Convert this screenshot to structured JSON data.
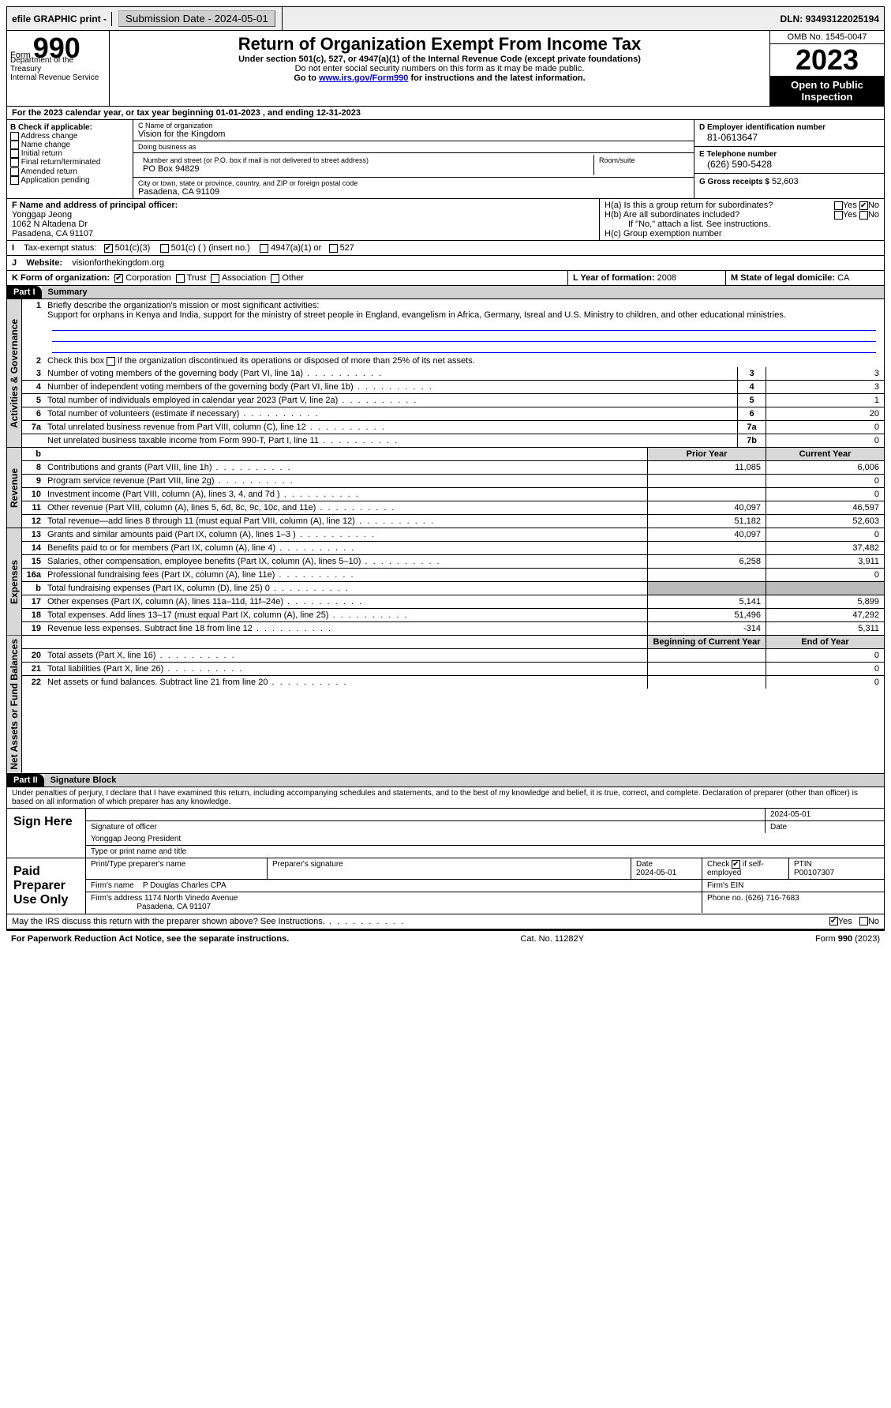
{
  "topbar": {
    "efile": "efile GRAPHIC print -",
    "submission_label": "Submission Date - 2024-05-01",
    "dln_label": "DLN:",
    "dln_value": "93493122025194"
  },
  "header": {
    "form_word": "Form",
    "form_no": "990",
    "dept": "Department of the Treasury\nInternal Revenue Service",
    "title": "Return of Organization Exempt From Income Tax",
    "subtitle": "Under section 501(c), 527, or 4947(a)(1) of the Internal Revenue Code (except private foundations)",
    "note": "Do not enter social security numbers on this form as it may be made public.",
    "goto_pre": "Go to ",
    "goto_link": "www.irs.gov/Form990",
    "goto_post": " for instructions and the latest information.",
    "omb": "OMB No. 1545-0047",
    "year": "2023",
    "open_pub": "Open to Public Inspection"
  },
  "line_a": {
    "text": "For the 2023 calendar year, or tax year beginning 01-01-2023   , and ending 12-31-2023"
  },
  "section_b": {
    "header": "B Check if applicable:",
    "items": [
      "Address change",
      "Name change",
      "Initial return",
      "Final return/terminated",
      "Amended return",
      "Application pending"
    ]
  },
  "section_c": {
    "name_hdr": "C Name of organization",
    "name": "Vision for the Kingdom",
    "dba_hdr": "Doing business as",
    "dba": "",
    "addr_hdr": "Number and street (or P.O. box if mail is not delivered to street address)",
    "addr": "PO Box 94829",
    "suite_hdr": "Room/suite",
    "city_hdr": "City or town, state or province, country, and ZIP or foreign postal code",
    "city": "Pasadena, CA  91109"
  },
  "section_de": {
    "d_hdr": "D Employer identification number",
    "d_val": "81-0613647",
    "e_hdr": "E Telephone number",
    "e_val": "(626) 590-5428",
    "g_hdr": "G Gross receipts $",
    "g_val": "52,603"
  },
  "section_f": {
    "hdr": "F  Name and address of principal officer:",
    "name": "Yonggap Jeong",
    "addr1": "1062 N Altadena Dr",
    "addr2": "Pasadena, CA  91107"
  },
  "section_h": {
    "ha": "H(a)  Is this a group return for subordinates?",
    "hb": "H(b)  Are all subordinates included?",
    "hb_note": "If \"No,\" attach a list. See instructions.",
    "hc": "H(c)  Group exemption number",
    "yes": "Yes",
    "no": "No"
  },
  "row_i": {
    "label": "Tax-exempt status:",
    "opt1": "501(c)(3)",
    "opt2": "501(c) (  ) (insert no.)",
    "opt3": "4947(a)(1) or",
    "opt4": "527"
  },
  "row_j": {
    "label": "Website:",
    "value": "visionforthekingdom.org"
  },
  "row_k": {
    "label": "K Form of organization:",
    "opts": [
      "Corporation",
      "Trust",
      "Association",
      "Other"
    ]
  },
  "row_l": {
    "label": "L Year of formation:",
    "value": "2008"
  },
  "row_m": {
    "label": "M State of legal domicile:",
    "value": "CA"
  },
  "part1": {
    "hdr": "Part I",
    "title": "Summary",
    "vtab1": "Activities & Governance",
    "vtab2": "Revenue",
    "vtab3": "Expenses",
    "vtab4": "Net Assets or Fund Balances",
    "l1_label": "Briefly describe the organization's mission or most significant activities:",
    "l1_text": "Support for orphans in Kenya and India, support for the ministry of street people in England, evangelism in Africa, Germany, Isreal and U.S. Ministry to children, and other educational ministries.",
    "l2_text": "Check this box       if the organization discontinued its operations or disposed of more than 25% of its net assets.",
    "lines_gov": [
      {
        "no": "3",
        "txt": "Number of voting members of the governing body (Part VI, line 1a)",
        "box": "3",
        "val": "3"
      },
      {
        "no": "4",
        "txt": "Number of independent voting members of the governing body (Part VI, line 1b)",
        "box": "4",
        "val": "3"
      },
      {
        "no": "5",
        "txt": "Total number of individuals employed in calendar year 2023 (Part V, line 2a)",
        "box": "5",
        "val": "1"
      },
      {
        "no": "6",
        "txt": "Total number of volunteers (estimate if necessary)",
        "box": "6",
        "val": "20"
      },
      {
        "no": "7a",
        "txt": "Total unrelated business revenue from Part VIII, column (C), line 12",
        "box": "7a",
        "val": "0"
      },
      {
        "no": "",
        "txt": "Net unrelated business taxable income from Form 990-T, Part I, line 11",
        "box": "7b",
        "val": "0"
      }
    ],
    "col_prior": "Prior Year",
    "col_current": "Current Year",
    "lines_rev": [
      {
        "no": "8",
        "txt": "Contributions and grants (Part VIII, line 1h)",
        "p": "11,085",
        "c": "6,006"
      },
      {
        "no": "9",
        "txt": "Program service revenue (Part VIII, line 2g)",
        "p": "",
        "c": "0"
      },
      {
        "no": "10",
        "txt": "Investment income (Part VIII, column (A), lines 3, 4, and 7d )",
        "p": "",
        "c": "0"
      },
      {
        "no": "11",
        "txt": "Other revenue (Part VIII, column (A), lines 5, 6d, 8c, 9c, 10c, and 11e)",
        "p": "40,097",
        "c": "46,597"
      },
      {
        "no": "12",
        "txt": "Total revenue—add lines 8 through 11 (must equal Part VIII, column (A), line 12)",
        "p": "51,182",
        "c": "52,603"
      }
    ],
    "lines_exp": [
      {
        "no": "13",
        "txt": "Grants and similar amounts paid (Part IX, column (A), lines 1–3 )",
        "p": "40,097",
        "c": "0"
      },
      {
        "no": "14",
        "txt": "Benefits paid to or for members (Part IX, column (A), line 4)",
        "p": "",
        "c": "37,482"
      },
      {
        "no": "15",
        "txt": "Salaries, other compensation, employee benefits (Part IX, column (A), lines 5–10)",
        "p": "6,258",
        "c": "3,911"
      },
      {
        "no": "16a",
        "txt": "Professional fundraising fees (Part IX, column (A), line 11e)",
        "p": "",
        "c": "0"
      },
      {
        "no": "b",
        "txt": "Total fundraising expenses (Part IX, column (D), line 25) 0",
        "p": "GRAY",
        "c": "GRAY"
      },
      {
        "no": "17",
        "txt": "Other expenses (Part IX, column (A), lines 11a–11d, 11f–24e)",
        "p": "5,141",
        "c": "5,899"
      },
      {
        "no": "18",
        "txt": "Total expenses. Add lines 13–17 (must equal Part IX, column (A), line 25)",
        "p": "51,496",
        "c": "47,292"
      },
      {
        "no": "19",
        "txt": "Revenue less expenses. Subtract line 18 from line 12",
        "p": "-314",
        "c": "5,311"
      }
    ],
    "col_begin": "Beginning of Current Year",
    "col_end": "End of Year",
    "lines_net": [
      {
        "no": "20",
        "txt": "Total assets (Part X, line 16)",
        "p": "",
        "c": "0"
      },
      {
        "no": "21",
        "txt": "Total liabilities (Part X, line 26)",
        "p": "",
        "c": "0"
      },
      {
        "no": "22",
        "txt": "Net assets or fund balances. Subtract line 21 from line 20",
        "p": "",
        "c": "0"
      }
    ]
  },
  "part2": {
    "hdr": "Part II",
    "title": "Signature Block",
    "decl": "Under penalties of perjury, I declare that I have examined this return, including accompanying schedules and statements, and to the best of my knowledge and belief, it is true, correct, and complete. Declaration of preparer (other than officer) is based on all information of which preparer has any knowledge.",
    "sign_here": "Sign Here",
    "sig_officer_lbl": "Signature of officer",
    "sig_date_lbl": "Date",
    "sig_date": "2024-05-01",
    "sig_name": "Yonggap Jeong  President",
    "sig_name_lbl": "Type or print name and title",
    "paid_prep": "Paid Preparer Use Only",
    "prep_name_lbl": "Print/Type preparer's name",
    "prep_sig_lbl": "Preparer's signature",
    "prep_date_lbl": "Date",
    "prep_date": "2024-05-01",
    "prep_check_lbl": "Check",
    "prep_self": "if self-employed",
    "ptin_lbl": "PTIN",
    "ptin": "P00107307",
    "firm_name_lbl": "Firm's name",
    "firm_name": "P Douglas Charles CPA",
    "firm_ein_lbl": "Firm's EIN",
    "firm_addr_lbl": "Firm's address",
    "firm_addr1": "1174 North Vinedo Avenue",
    "firm_addr2": "Pasadena, CA  91107",
    "phone_lbl": "Phone no.",
    "phone": "(626) 716-7683",
    "discuss": "May the IRS discuss this return with the preparer shown above? See Instructions.",
    "yes": "Yes",
    "no": "No"
  },
  "footer": {
    "left": "For Paperwork Reduction Act Notice, see the separate instructions.",
    "mid": "Cat. No. 11282Y",
    "right": "Form 990 (2023)"
  },
  "colors": {
    "link": "#0000cc",
    "bg_gray": "#d8d8d8"
  }
}
